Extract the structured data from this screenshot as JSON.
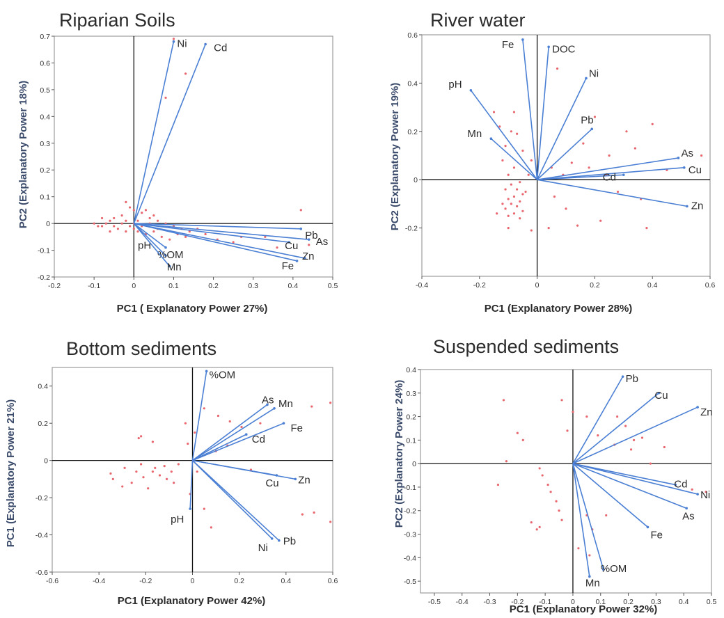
{
  "colors": {
    "vector": "#4a7fd4",
    "point": "#e8666d",
    "frame": "#888888",
    "axis": "#111111"
  },
  "chart_data": [
    {
      "type": "scatter",
      "title": "Riparian Soils",
      "xlabel": "PC1 ( Explanatory Power 27%)",
      "ylabel": "PC2 (Explanatory Power 18%)",
      "xlim": [
        -0.2,
        0.5
      ],
      "ylim": [
        -0.2,
        0.7
      ],
      "xticks": [
        "-0.2",
        "-0.1",
        "0",
        "0.1",
        "0.2",
        "0.3",
        "0.4",
        "0.5"
      ],
      "yticks": [
        "-0.2",
        "-0.1",
        "0",
        "0.1",
        "0.2",
        "0.3",
        "0.4",
        "0.5",
        "0.6",
        "0.7"
      ],
      "grid": false,
      "vectors": [
        {
          "label": "Ni",
          "x": 0.1,
          "y": 0.68
        },
        {
          "label": "Cd",
          "x": 0.18,
          "y": 0.67
        },
        {
          "label": "Pb",
          "x": 0.42,
          "y": -0.02
        },
        {
          "label": "As",
          "x": 0.44,
          "y": -0.06
        },
        {
          "label": "Cu",
          "x": 0.39,
          "y": -0.07
        },
        {
          "label": "Zn",
          "x": 0.43,
          "y": -0.13
        },
        {
          "label": "Fe",
          "x": 0.41,
          "y": -0.14
        },
        {
          "label": "pH",
          "x": 0.08,
          "y": -0.09
        },
        {
          "label": "%OM",
          "x": 0.08,
          "y": -0.12
        },
        {
          "label": "Mn",
          "x": 0.09,
          "y": -0.16
        }
      ],
      "points": [
        [
          0.1,
          0.69
        ],
        [
          0.13,
          0.56
        ],
        [
          0.08,
          0.47
        ],
        [
          0.42,
          0.05
        ],
        [
          0.44,
          -0.08
        ],
        [
          0.27,
          -0.05
        ],
        [
          -0.02,
          0.08
        ],
        [
          -0.01,
          0.06
        ],
        [
          0.0,
          0.05
        ],
        [
          0.02,
          0.04
        ],
        [
          -0.03,
          0.03
        ],
        [
          0.04,
          0.02
        ],
        [
          -0.05,
          0.02
        ],
        [
          0.06,
          0.01
        ],
        [
          -0.06,
          0.01
        ],
        [
          0.08,
          0.0
        ],
        [
          -0.07,
          0.0
        ],
        [
          0.1,
          -0.01
        ],
        [
          -0.08,
          -0.01
        ],
        [
          0.12,
          -0.02
        ],
        [
          -0.09,
          -0.01
        ],
        [
          0.14,
          -0.03
        ],
        [
          -0.1,
          0.0
        ],
        [
          0.16,
          -0.02
        ],
        [
          -0.04,
          -0.02
        ],
        [
          0.05,
          -0.03
        ],
        [
          -0.02,
          -0.03
        ],
        [
          0.03,
          -0.04
        ],
        [
          0.0,
          -0.02
        ],
        [
          0.01,
          0.01
        ],
        [
          -0.01,
          -0.01
        ],
        [
          0.02,
          -0.01
        ],
        [
          -0.03,
          0.0
        ],
        [
          0.04,
          0.0
        ],
        [
          -0.05,
          -0.01
        ],
        [
          0.06,
          -0.02
        ],
        [
          0.09,
          -0.06
        ],
        [
          0.07,
          -0.05
        ],
        [
          0.11,
          -0.04
        ],
        [
          0.13,
          -0.05
        ],
        [
          0.18,
          -0.04
        ],
        [
          0.21,
          -0.06
        ],
        [
          0.25,
          -0.07
        ],
        [
          0.33,
          -0.05
        ],
        [
          0.36,
          -0.09
        ],
        [
          -0.02,
          0.01
        ],
        [
          0.0,
          0.0
        ],
        [
          0.01,
          -0.03
        ],
        [
          -0.06,
          -0.03
        ],
        [
          -0.08,
          0.02
        ],
        [
          0.05,
          0.03
        ],
        [
          0.03,
          0.05
        ]
      ]
    },
    {
      "type": "scatter",
      "title": "River water",
      "xlabel": "PC1 (Explanatory Power 28%)",
      "ylabel": "PC2 (Explanatory Power 19%)",
      "xlim": [
        -0.4,
        0.6
      ],
      "ylim": [
        -0.4,
        0.6
      ],
      "xticks": [
        "-0.4",
        "-0.2",
        "0",
        "0.2",
        "0.4",
        "0.6"
      ],
      "yticks": [
        "-0.2",
        "0",
        "0.2",
        "0.4",
        "0.6"
      ],
      "grid": false,
      "vectors": [
        {
          "label": "Fe",
          "x": -0.05,
          "y": 0.58
        },
        {
          "label": "DOC",
          "x": 0.04,
          "y": 0.55
        },
        {
          "label": "Ni",
          "x": 0.17,
          "y": 0.42
        },
        {
          "label": "pH",
          "x": -0.23,
          "y": 0.37
        },
        {
          "label": "Pb",
          "x": 0.19,
          "y": 0.21
        },
        {
          "label": "Mn",
          "x": -0.16,
          "y": 0.17
        },
        {
          "label": "As",
          "x": 0.49,
          "y": 0.09
        },
        {
          "label": "Cu",
          "x": 0.51,
          "y": 0.05
        },
        {
          "label": "Cd",
          "x": 0.3,
          "y": 0.02
        },
        {
          "label": "Zn",
          "x": 0.52,
          "y": -0.11
        }
      ],
      "points": [
        [
          0.07,
          0.46
        ],
        [
          0.2,
          0.26
        ],
        [
          0.4,
          0.23
        ],
        [
          0.57,
          0.1
        ],
        [
          0.34,
          0.13
        ],
        [
          0.45,
          0.04
        ],
        [
          0.36,
          -0.08
        ],
        [
          0.38,
          -0.2
        ],
        [
          0.22,
          -0.17
        ],
        [
          0.14,
          -0.19
        ],
        [
          0.04,
          -0.2
        ],
        [
          -0.02,
          -0.21
        ],
        [
          -0.1,
          -0.2
        ],
        [
          -0.14,
          -0.14
        ],
        [
          -0.08,
          0.28
        ],
        [
          -0.15,
          0.28
        ],
        [
          -0.13,
          0.22
        ],
        [
          -0.09,
          0.2
        ],
        [
          -0.07,
          0.19
        ],
        [
          -0.11,
          0.14
        ],
        [
          -0.05,
          0.12
        ],
        [
          -0.12,
          0.08
        ],
        [
          -0.08,
          0.05
        ],
        [
          -0.1,
          0.02
        ],
        [
          -0.06,
          -0.01
        ],
        [
          -0.09,
          -0.02
        ],
        [
          -0.11,
          -0.04
        ],
        [
          -0.07,
          -0.04
        ],
        [
          -0.05,
          -0.06
        ],
        [
          -0.08,
          -0.07
        ],
        [
          -0.1,
          -0.08
        ],
        [
          -0.06,
          -0.09
        ],
        [
          -0.09,
          -0.1
        ],
        [
          -0.07,
          -0.11
        ],
        [
          -0.11,
          -0.12
        ],
        [
          -0.05,
          -0.13
        ],
        [
          -0.08,
          -0.14
        ],
        [
          -0.1,
          -0.15
        ],
        [
          -0.06,
          -0.16
        ],
        [
          -0.12,
          -0.1
        ],
        [
          -0.04,
          -0.05
        ],
        [
          -0.03,
          0.02
        ],
        [
          -0.02,
          0.08
        ],
        [
          0.05,
          0.05
        ],
        [
          0.09,
          0.02
        ],
        [
          0.12,
          0.07
        ],
        [
          0.16,
          0.15
        ],
        [
          0.18,
          0.05
        ],
        [
          0.24,
          0.02
        ],
        [
          0.28,
          -0.05
        ],
        [
          0.1,
          -0.12
        ],
        [
          0.06,
          -0.07
        ],
        [
          0.31,
          0.2
        ],
        [
          0.25,
          0.1
        ]
      ]
    },
    {
      "type": "scatter",
      "title": "Bottom sediments",
      "xlabel": "PC1 (Explanatory Power 42%)",
      "ylabel": "PC1 (Explanatory Power 21%)",
      "xlim": [
        -0.6,
        0.6
      ],
      "ylim": [
        -0.6,
        0.5
      ],
      "xticks": [
        "-0.6",
        "-0.4",
        "-0.2",
        "0",
        "0.2",
        "0.4",
        "0.6"
      ],
      "yticks": [
        "-0.6",
        "-0.4",
        "-0.2",
        "0",
        "0.2",
        "0.4"
      ],
      "grid": false,
      "vectors": [
        {
          "label": "%OM",
          "x": 0.06,
          "y": 0.48
        },
        {
          "label": "As",
          "x": 0.32,
          "y": 0.3
        },
        {
          "label": "Mn",
          "x": 0.35,
          "y": 0.28
        },
        {
          "label": "Fe",
          "x": 0.39,
          "y": 0.2
        },
        {
          "label": "Cd",
          "x": 0.23,
          "y": 0.14
        },
        {
          "label": "Cu",
          "x": 0.36,
          "y": -0.08
        },
        {
          "label": "Zn",
          "x": 0.44,
          "y": -0.1
        },
        {
          "label": "pH",
          "x": -0.01,
          "y": -0.26
        },
        {
          "label": "Pb",
          "x": 0.37,
          "y": -0.43
        },
        {
          "label": "Ni",
          "x": 0.34,
          "y": -0.42
        }
      ],
      "points": [
        [
          -0.35,
          -0.07
        ],
        [
          -0.34,
          -0.1
        ],
        [
          -0.3,
          -0.14
        ],
        [
          -0.29,
          -0.04
        ],
        [
          -0.26,
          -0.12
        ],
        [
          -0.24,
          -0.06
        ],
        [
          -0.22,
          -0.02
        ],
        [
          -0.21,
          -0.09
        ],
        [
          -0.19,
          -0.15
        ],
        [
          -0.17,
          -0.06
        ],
        [
          -0.16,
          -0.04
        ],
        [
          -0.14,
          -0.08
        ],
        [
          -0.12,
          -0.03
        ],
        [
          -0.11,
          -0.1
        ],
        [
          -0.09,
          -0.06
        ],
        [
          -0.08,
          -0.12
        ],
        [
          -0.06,
          -0.02
        ],
        [
          -0.23,
          0.12
        ],
        [
          -0.22,
          0.13
        ],
        [
          -0.17,
          0.1
        ],
        [
          -0.02,
          0.09
        ],
        [
          -0.03,
          0.2
        ],
        [
          0.01,
          0.15
        ],
        [
          0.05,
          0.28
        ],
        [
          0.11,
          0.24
        ],
        [
          0.16,
          0.21
        ],
        [
          0.21,
          0.18
        ],
        [
          0.29,
          0.2
        ],
        [
          0.59,
          0.31
        ],
        [
          0.51,
          0.29
        ],
        [
          0.47,
          -0.29
        ],
        [
          0.52,
          -0.28
        ],
        [
          0.59,
          -0.33
        ],
        [
          0.08,
          -0.36
        ],
        [
          0.05,
          -0.26
        ],
        [
          -0.01,
          -0.18
        ],
        [
          0.02,
          -0.06
        ],
        [
          0.1,
          0.05
        ],
        [
          0.15,
          0.08
        ],
        [
          0.25,
          -0.05
        ]
      ]
    },
    {
      "type": "scatter",
      "title": "Suspended sediments",
      "xlabel": "PC1 (Explanatory Power 32%)",
      "ylabel": "PC2 (Explanatory Power 24%)",
      "xlim": [
        -0.55,
        0.5
      ],
      "ylim": [
        -0.55,
        0.4
      ],
      "xticks": [
        "-0.5",
        "-0.4",
        "-0.3",
        "-0.2",
        "-0.1",
        "0",
        "0.1",
        "0.2",
        "0.3",
        "0.4",
        "0.5"
      ],
      "yticks": [
        "-0.5",
        "-0.4",
        "-0.3",
        "-0.2",
        "-0.1",
        "0",
        "0.1",
        "0.2",
        "0.3",
        "0.4"
      ],
      "grid": false,
      "vectors": [
        {
          "label": "Pb",
          "x": 0.18,
          "y": 0.37
        },
        {
          "label": "Cu",
          "x": 0.31,
          "y": 0.3
        },
        {
          "label": "Zn",
          "x": 0.45,
          "y": 0.24
        },
        {
          "label": "Cd",
          "x": 0.37,
          "y": -0.09
        },
        {
          "label": "Ni",
          "x": 0.45,
          "y": -0.13
        },
        {
          "label": "As",
          "x": 0.41,
          "y": -0.19
        },
        {
          "label": "Fe",
          "x": 0.27,
          "y": -0.27
        },
        {
          "label": "%OM",
          "x": 0.11,
          "y": -0.45
        },
        {
          "label": "Mn",
          "x": 0.06,
          "y": -0.48
        }
      ],
      "points": [
        [
          -0.25,
          0.27
        ],
        [
          -0.24,
          0.01
        ],
        [
          -0.2,
          0.13
        ],
        [
          -0.18,
          0.1
        ],
        [
          -0.27,
          -0.09
        ],
        [
          -0.12,
          -0.02
        ],
        [
          -0.11,
          -0.05
        ],
        [
          -0.09,
          -0.09
        ],
        [
          -0.08,
          -0.12
        ],
        [
          -0.06,
          -0.16
        ],
        [
          -0.05,
          -0.2
        ],
        [
          -0.04,
          -0.24
        ],
        [
          -0.12,
          -0.27
        ],
        [
          -0.15,
          -0.25
        ],
        [
          -0.13,
          -0.28
        ],
        [
          -0.04,
          0.27
        ],
        [
          0.0,
          0.22
        ],
        [
          0.05,
          0.2
        ],
        [
          -0.02,
          0.14
        ],
        [
          0.09,
          0.12
        ],
        [
          0.15,
          0.08
        ],
        [
          0.21,
          0.06
        ],
        [
          0.22,
          0.1
        ],
        [
          0.28,
          -0.0
        ],
        [
          0.33,
          0.07
        ],
        [
          0.25,
          0.11
        ],
        [
          0.19,
          0.16
        ],
        [
          0.16,
          0.2
        ],
        [
          0.43,
          -0.11
        ],
        [
          0.48,
          -0.12
        ],
        [
          0.07,
          -0.28
        ],
        [
          0.05,
          -0.22
        ],
        [
          0.12,
          -0.22
        ],
        [
          0.02,
          -0.36
        ],
        [
          0.06,
          -0.39
        ]
      ]
    }
  ]
}
